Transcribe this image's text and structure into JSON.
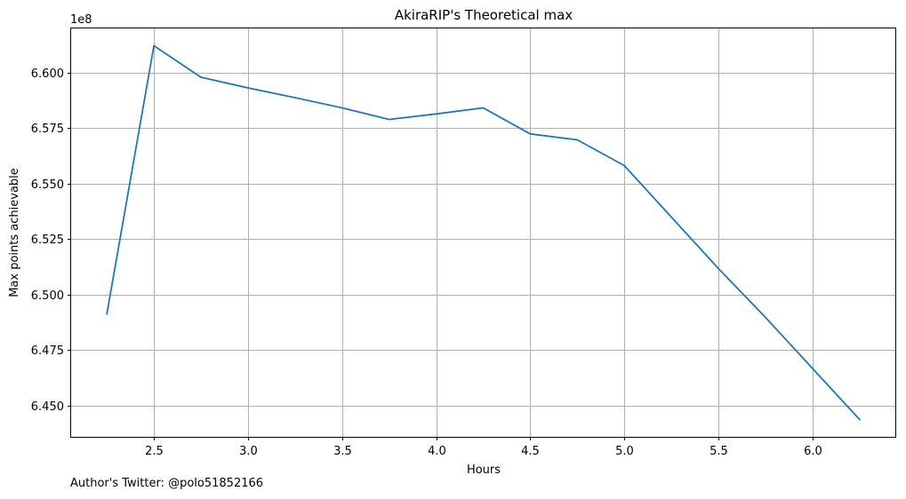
{
  "chart_data": {
    "type": "line",
    "title": "AkiraRIP's Theoretical max",
    "xlabel": "Hours",
    "ylabel": "Max points achievable",
    "offset_text": "1e8",
    "xlim": [
      2.06,
      6.44
    ],
    "ylim": [
      643580000,
      661980000
    ],
    "x_ticks": [
      2.5,
      3.0,
      3.5,
      4.0,
      4.5,
      5.0,
      5.5,
      6.0
    ],
    "x_tick_labels": [
      "2.5",
      "3.0",
      "3.5",
      "4.0",
      "4.5",
      "5.0",
      "5.5",
      "6.0"
    ],
    "y_ticks": [
      645000000,
      647500000,
      650000000,
      652500000,
      655000000,
      657500000,
      660000000
    ],
    "y_tick_labels": [
      "6.450",
      "6.475",
      "6.500",
      "6.525",
      "6.550",
      "6.575",
      "6.600"
    ],
    "grid": true,
    "series": [
      {
        "color": "#1f77b4",
        "x": [
          2.25,
          2.5,
          2.75,
          3.0,
          3.25,
          3.5,
          3.75,
          4.0,
          4.25,
          4.5,
          4.75,
          5.0,
          5.25,
          5.5,
          5.75,
          6.0,
          6.25
        ],
        "y": [
          649120000,
          661200000,
          659780000,
          659300000,
          658860000,
          658400000,
          657880000,
          658130000,
          658400000,
          657230000,
          656960000,
          655800000,
          653480000,
          651160000,
          648960000,
          646660000,
          644360000
        ]
      }
    ]
  },
  "footer": {
    "note": "Author's Twitter: @polo51852166"
  }
}
